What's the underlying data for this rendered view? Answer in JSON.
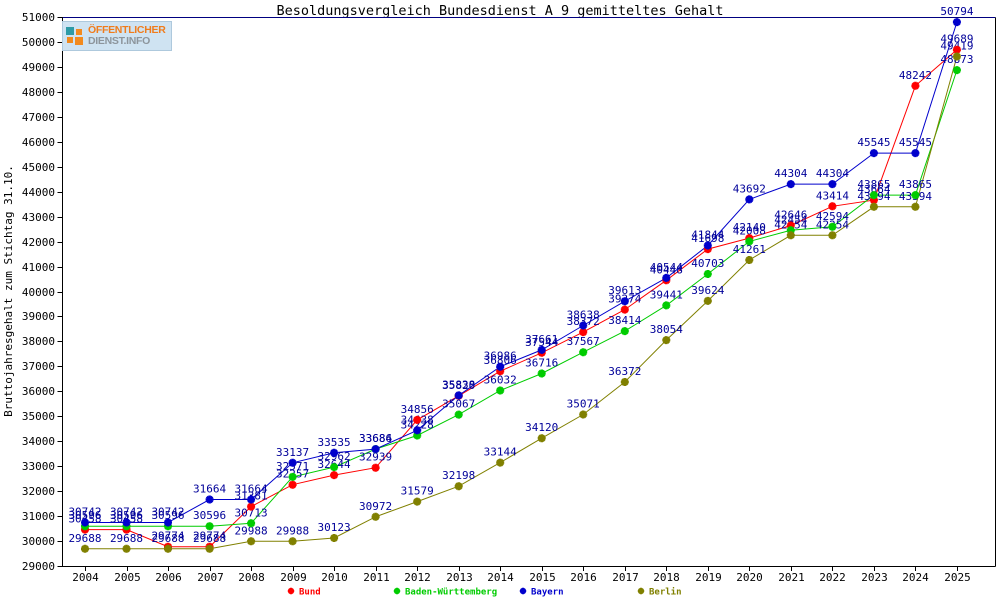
{
  "title": "Besoldungsvergleich Bundesdienst A 9 gemitteltes Gehalt",
  "logo": {
    "line1": "ÖFFENTLICHER",
    "line2": "DIENST.INFO",
    "icon_teal": "#2e9ba6",
    "icon_orange": "#f28a1e"
  },
  "colors": {
    "frame": "#000000",
    "frame_top": "#000080",
    "label": "#000099",
    "axis_text": "#000000",
    "background": "#ffffff"
  },
  "axis": {
    "y_label": "Bruttojahresgehalt zum Stichtag 31.10.",
    "y_min": 29000,
    "y_max": 51000,
    "y_step": 1000
  },
  "chart_data": {
    "type": "line",
    "title": "Besoldungsvergleich Bundesdienst A 9 gemitteltes Gehalt",
    "ylabel": "Bruttojahresgehalt zum Stichtag 31.10.",
    "xlabel": "",
    "ylim": [
      29000,
      51000
    ],
    "grid": false,
    "legend_position": "bottom",
    "x": [
      2004,
      2005,
      2006,
      2007,
      2008,
      2009,
      2010,
      2011,
      2012,
      2013,
      2014,
      2015,
      2016,
      2017,
      2018,
      2019,
      2020,
      2021,
      2022,
      2023,
      2024,
      2025
    ],
    "series": [
      {
        "name": "Bund",
        "color": "#ff0000",
        "values": [
          30458,
          30458,
          29774,
          29774,
          31381,
          32257,
          32644,
          32939,
          34856,
          35820,
          36806,
          37544,
          38372,
          39274,
          40448,
          41698,
          42140,
          42646,
          43414,
          43664,
          48242,
          49689
        ]
      },
      {
        "name": "Baden-Württemberg",
        "color": "#00cc00",
        "values": [
          30596,
          30596,
          30596,
          30596,
          30713,
          32571,
          32962,
          33684,
          34228,
          35067,
          36032,
          36716,
          37567,
          38414,
          39441,
          40703,
          42008,
          42454,
          42594,
          43865,
          43865,
          48873
        ]
      },
      {
        "name": "Bayern",
        "color": "#0000cc",
        "values": [
          30742,
          30742,
          30742,
          31664,
          31664,
          33137,
          33535,
          33686,
          34438,
          35838,
          36986,
          37661,
          38638,
          39613,
          40544,
          41844,
          43692,
          44304,
          44304,
          45545,
          45545,
          50794
        ]
      },
      {
        "name": "Berlin",
        "color": "#808000",
        "values": [
          29688,
          29688,
          29688,
          29688,
          29988,
          29988,
          30123,
          30972,
          31579,
          32198,
          33144,
          34120,
          35071,
          36372,
          38054,
          39624,
          41261,
          42254,
          42254,
          43394,
          43394,
          49419
        ]
      }
    ]
  }
}
